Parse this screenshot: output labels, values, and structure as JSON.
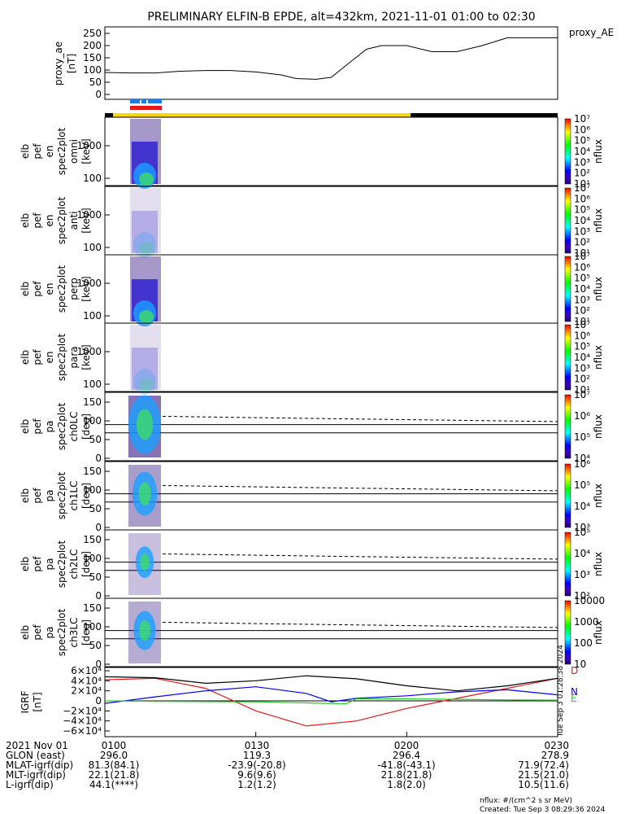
{
  "chart_data": {
    "type": "line",
    "title": "PRELIMINARY ELFIN-B EPDE, alt=432km, 2021-11-01 01:00 to 02:30",
    "ae_panel": {
      "ylabel": [
        "proxy_ae",
        "[nT]"
      ],
      "legend": "proxy_AE",
      "ylim": [
        0,
        260
      ],
      "yticks": [
        "250",
        "200",
        "150",
        "100",
        "50",
        "0"
      ],
      "x_minutes": [
        0,
        5,
        10,
        15,
        20,
        25,
        30,
        35,
        38,
        42,
        45,
        48,
        52,
        55,
        60,
        65,
        70,
        75,
        80,
        85,
        90
      ],
      "values": [
        90,
        88,
        88,
        95,
        98,
        98,
        92,
        80,
        65,
        62,
        70,
        120,
        185,
        200,
        200,
        175,
        175,
        200,
        232,
        232,
        232
      ]
    },
    "bars": {
      "top_blue": "#1d7be8",
      "top_red": "#e31a1c",
      "day": "#f5d90a",
      "night": "#000000"
    },
    "energy_panels": [
      {
        "label": [
          "elb",
          "pef",
          "en",
          "spec2plot",
          "omni",
          "[keV]"
        ],
        "yticks": [
          "1000",
          "100"
        ]
      },
      {
        "label": [
          "elb",
          "pef",
          "en",
          "spec2plot",
          "anti",
          "[keV]"
        ],
        "yticks": [
          "1000",
          "100"
        ]
      },
      {
        "label": [
          "elb",
          "pef",
          "en",
          "spec2plot",
          "perp",
          "[keV]"
        ],
        "yticks": [
          "1000",
          "100"
        ]
      },
      {
        "label": [
          "elb",
          "pef",
          "en",
          "spec2plot",
          "para",
          "[keV]"
        ],
        "yticks": [
          "1000",
          "100"
        ]
      }
    ],
    "pa_panels": [
      {
        "label": [
          "elb",
          "pef",
          "pa",
          "spec2plot",
          "ch0LC",
          "[deg]"
        ],
        "yticks": [
          "150",
          "100",
          "50",
          "0"
        ],
        "cbar": [
          "10⁷",
          "10⁶",
          "10⁵",
          "10⁴"
        ]
      },
      {
        "label": [
          "elb",
          "pef",
          "pa",
          "spec2plot",
          "ch1LC",
          "[deg]"
        ],
        "yticks": [
          "150",
          "100",
          "50",
          "0"
        ],
        "cbar": [
          "10⁶",
          "10⁵",
          "10⁴",
          "10³"
        ]
      },
      {
        "label": [
          "elb",
          "pef",
          "pa",
          "spec2plot",
          "ch2LC",
          "[deg]"
        ],
        "yticks": [
          "150",
          "100",
          "50",
          "0"
        ],
        "cbar": [
          "10⁵",
          "10⁴",
          "10³",
          "10²"
        ]
      },
      {
        "label": [
          "elb",
          "pef",
          "pa",
          "spec2plot",
          "ch3LC",
          "[deg]"
        ],
        "yticks": [
          "150",
          "100",
          "50",
          "0"
        ],
        "cbar": [
          "10000",
          "1000",
          "100",
          "10"
        ]
      }
    ],
    "energy_cbar": [
      "10⁷",
      "10⁶",
      "10⁵",
      "10⁴",
      "10³",
      "10²",
      "10¹"
    ],
    "cbar_label": "nflux",
    "igrf_panel": {
      "ylabel": [
        "IGRF",
        "[nT]"
      ],
      "yticks": [
        "6×10⁴",
        "4×10⁴",
        "2×10⁴",
        "0",
        "−2×10⁴",
        "−4×10⁴",
        "−6×10⁴"
      ],
      "ylim": [
        -60000,
        60000
      ],
      "series": [
        {
          "name": "D",
          "color": "#e31a1c",
          "x_minutes": [
            0,
            10,
            20,
            30,
            40,
            50,
            60,
            70,
            80,
            90
          ],
          "values": [
            42000,
            45000,
            25000,
            -20000,
            -50000,
            -40000,
            -15000,
            5000,
            25000,
            45000
          ]
        },
        {
          "name": "N",
          "color": "#0000ee",
          "x_minutes": [
            0,
            10,
            20,
            30,
            40,
            45,
            50,
            60,
            70,
            80,
            90
          ],
          "values": [
            -5000,
            8000,
            20000,
            28000,
            15000,
            -2000,
            5000,
            10000,
            18000,
            22000,
            12000
          ]
        },
        {
          "name": "E",
          "color": "#22cc22",
          "x_minutes": [
            0,
            10,
            20,
            30,
            40,
            48,
            50,
            60,
            70,
            80,
            90
          ],
          "values": [
            0,
            -1000,
            -1500,
            -2000,
            -4000,
            -6000,
            4000,
            4000,
            3000,
            2000,
            1500
          ]
        },
        {
          "name": "",
          "color": "#000000",
          "x_minutes": [
            0,
            10,
            20,
            30,
            40,
            50,
            60,
            70,
            80,
            90
          ],
          "values": [
            48000,
            46000,
            35000,
            40000,
            50000,
            44000,
            30000,
            20000,
            30000,
            45000
          ]
        }
      ]
    },
    "xticks": [
      "0100",
      "0130",
      "0200",
      "0230"
    ],
    "ephemeris": {
      "rows": [
        {
          "label": "2021 Nov 01",
          "values": [
            "0100",
            "0130",
            "0200",
            "0230"
          ]
        },
        {
          "label": "GLON (east)",
          "values": [
            "296.0",
            "119.3",
            "296.4",
            "278.9"
          ]
        },
        {
          "label": "MLAT-igrf(dip)",
          "values": [
            "81.3(84.1)",
            "-23.9(-20.8)",
            "-41.8(-43.1)",
            "71.9(72.4)"
          ]
        },
        {
          "label": "MLT-igrf(dip)",
          "values": [
            "22.1(21.8)",
            "9.6(9.6)",
            "21.8(21.8)",
            "21.5(21.0)"
          ]
        },
        {
          "label": "L-igrf(dip)",
          "values": [
            "44.1(****)",
            "1.2(1.2)",
            "1.8(2.0)",
            "10.5(11.6)"
          ]
        }
      ]
    },
    "footer": {
      "units": "nflux: #/(cm^2 s sr MeV)",
      "created": "Created: Tue Sep  3 08:29:36 2024",
      "side_stamp": "Tue Sep  3 01:28:38 2024"
    }
  }
}
